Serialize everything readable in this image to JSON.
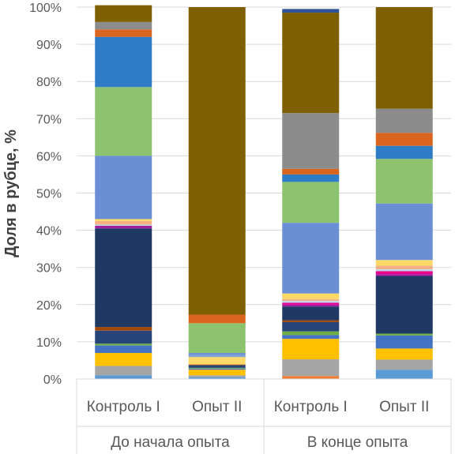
{
  "chart_data": {
    "type": "bar",
    "stacked": true,
    "title": "",
    "xlabel": "",
    "ylabel": "Доля в рубце, %",
    "ylim": [
      0,
      100
    ],
    "yticks": [
      "0%",
      "10%",
      "20%",
      "30%",
      "40%",
      "50%",
      "60%",
      "70%",
      "80%",
      "90%",
      "100%"
    ],
    "grid": true,
    "legend": "none",
    "groups": [
      {
        "label": "До начала опыта",
        "categories": [
          "Контроль I",
          "Опыт II"
        ]
      },
      {
        "label": "В конце опыта",
        "categories": [
          "Контроль I",
          "Опыт II"
        ]
      }
    ],
    "categories": [
      "Контроль I",
      "Опыт II",
      "Контроль I",
      "Опыт II"
    ],
    "series": [
      {
        "color": "#5B9BD5",
        "values": [
          1.0,
          0.5,
          0.0,
          2.5
        ]
      },
      {
        "color": "#ED7D31",
        "values": [
          0.0,
          0.0,
          0.8,
          0.0
        ]
      },
      {
        "color": "#A5A5A5",
        "values": [
          2.5,
          0.5,
          4.5,
          2.7
        ]
      },
      {
        "color": "#FFC000",
        "values": [
          3.5,
          1.5,
          5.5,
          3.0
        ]
      },
      {
        "color": "#4472C4",
        "values": [
          2.0,
          0.3,
          1.0,
          3.5
        ]
      },
      {
        "color": "#70AD47",
        "values": [
          0.5,
          0.2,
          1.0,
          0.5
        ]
      },
      {
        "color": "#264478",
        "values": [
          3.5,
          0.7,
          2.5,
          0.0
        ]
      },
      {
        "color": "#9E480E",
        "values": [
          1.0,
          0.2,
          0.5,
          0.0
        ]
      },
      {
        "color": "#1F3864",
        "values": [
          26.5,
          0.0,
          3.7,
          15.5
        ]
      },
      {
        "color": "#A020A0",
        "values": [
          0.7,
          0.0,
          0.5,
          0.5
        ]
      },
      {
        "color": "#E6008A",
        "values": [
          0.0,
          0.0,
          0.5,
          0.8
        ]
      },
      {
        "color": "#BDD7EE",
        "values": [
          0.3,
          0.0,
          0.5,
          0.5
        ]
      },
      {
        "color": "#F4B183",
        "values": [
          1.0,
          0.0,
          0.5,
          1.0
        ]
      },
      {
        "color": "#FFD966",
        "values": [
          0.5,
          2.0,
          1.5,
          1.5
        ]
      },
      {
        "color": "#7F9FD6",
        "values": [
          0.0,
          0.6,
          0.0,
          0.0
        ]
      },
      {
        "color": "#6A8FD4",
        "values": [
          17.0,
          0.5,
          19.0,
          15.2
        ]
      },
      {
        "color": "#8DC26F",
        "values": [
          18.5,
          8.0,
          11.0,
          12.0
        ]
      },
      {
        "color": "#2E7BC6",
        "values": [
          13.5,
          0.0,
          2.0,
          3.5
        ]
      },
      {
        "color": "#D9651E",
        "values": [
          2.0,
          2.3,
          1.5,
          3.5
        ]
      },
      {
        "color": "#8C8C8C",
        "values": [
          2.0,
          0.0,
          15.0,
          6.5
        ]
      },
      {
        "color": "#7F6000",
        "values": [
          4.5,
          82.7,
          27.0,
          27.3
        ]
      },
      {
        "color": "#2F5597",
        "values": [
          0.0,
          0.0,
          1.0,
          0.0
        ]
      }
    ]
  }
}
